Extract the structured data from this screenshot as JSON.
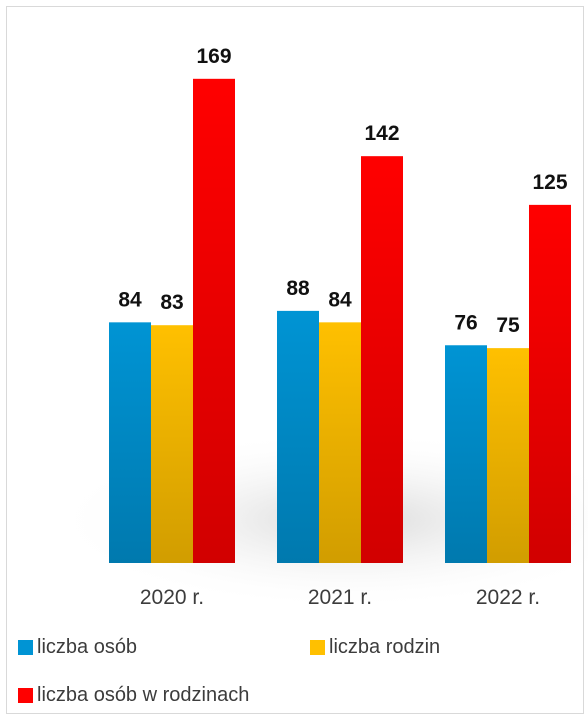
{
  "chart_data": {
    "type": "bar",
    "categories": [
      "2020 r.",
      "2021 r.",
      "2022 r."
    ],
    "series": [
      {
        "name": "liczba osób",
        "values": [
          84,
          88,
          76
        ],
        "color": "#0094d4"
      },
      {
        "name": "liczba rodzin",
        "values": [
          83,
          84,
          75
        ],
        "color": "#ffc000"
      },
      {
        "name": "liczba osób w rodzinach",
        "values": [
          169,
          142,
          125
        ],
        "color": "#ff0000"
      }
    ],
    "title": "",
    "xlabel": "",
    "ylabel": "",
    "ylim": [
      0,
      200
    ],
    "grid": false,
    "data_labels": true,
    "legend_position": "bottom"
  }
}
